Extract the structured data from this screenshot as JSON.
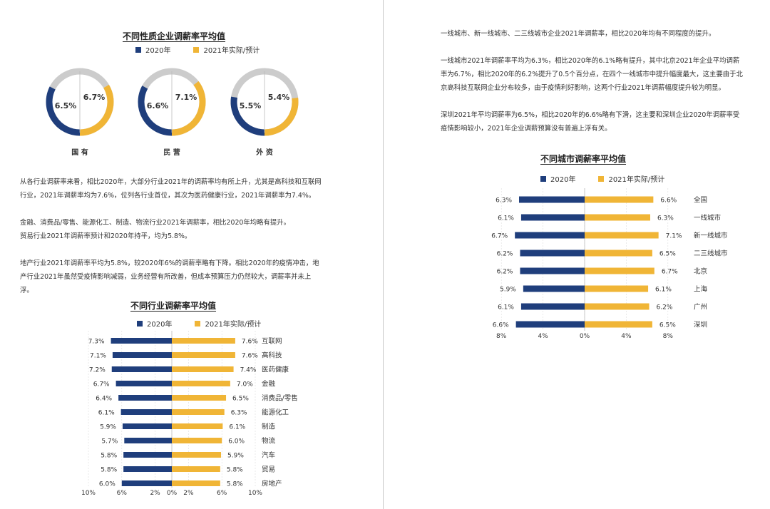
{
  "left_page": {
    "donut_chart": {
      "title": "不同性质企业调薪率平均值",
      "legend": [
        "2020年",
        "2021年实际/预计"
      ],
      "colors": {
        "y2020": "#1f3e7c",
        "y2021": "#f0b536",
        "rest": "#cccccc"
      }
    },
    "text_lines": [
      "从各行业调薪率来看，相比2020年，大部分行业2021年的调薪率均有所上升，尤其是高科技和互联网",
      "行业，2021年调薪率均为7.6%，位列各行业首位，其次为医药健康行业，2021年调薪率为7.4%。",
      "",
      "金融、消费品/零售、能源化工、制造、物流行业2021年调薪率，相比2020年均略有提升。",
      "贸易行业2021年调薪率预计和2020年持平，均为5.8%。",
      "",
      "地产行业2021年调薪率平均为5.8%，较2020年6%的调薪率略有下降。相比2020年的疫情冲击，地",
      "产行业2021年虽然受疫情影响减弱，业务经营有所改善，但成本预算压力仍然较大，调薪率并未上",
      "浮。"
    ],
    "industry_chart": {
      "title": "不同行业调薪率平均值",
      "legend": [
        "2020年",
        "2021年实际/预计"
      ]
    }
  },
  "right_page": {
    "text_lines": [
      "一线城市、新一线城市、二三线城市企业2021年调薪率，相比2020年均有不同程度的提升。",
      "",
      "一线城市2021年调薪率平均为6.3%，相比2020年的6.1%略有提升，其中北京2021年企业平均调薪",
      "率为6.7%，相比2020年的6.2%提升了0.5个百分点，在四个一线城市中提升幅度最大，这主要由于北",
      "京高科技互联网企业分布较多，由于疫情利好影响，这两个行业2021年调薪幅度提升较为明显。",
      "",
      "深圳2021年平均调薪率为6.5%，相比2020年的6.6%略有下滑，这主要和深圳企业2020年调薪率受",
      "疫情影响较小，2021年企业调薪预算没有普遍上浮有关。"
    ],
    "city_chart": {
      "title": "不同城市调薪率平均值",
      "legend": [
        "2020年",
        "2021年实际/预计"
      ]
    }
  },
  "chart_data": [
    {
      "type": "pie",
      "title": "不同性质企业调薪率平均值",
      "series_names": [
        "2020年",
        "2021年实际/预计"
      ],
      "groups": [
        {
          "label": "国 有",
          "v2020": "6.5%",
          "v2021": "6.7%"
        },
        {
          "label": "民 营",
          "v2020": "6.6%",
          "v2021": "7.1%"
        },
        {
          "label": "外 资",
          "v2020": "5.5%",
          "v2021": "5.4%"
        }
      ]
    },
    {
      "type": "bar",
      "title": "不同行业调薪率平均值",
      "categories": [
        "互联网",
        "高科技",
        "医药健康",
        "金融",
        "消费品/零售",
        "能源化工",
        "制造",
        "物流",
        "汽车",
        "贸易",
        "房地产"
      ],
      "series": [
        {
          "name": "2020年",
          "values": [
            7.3,
            7.1,
            7.2,
            6.7,
            6.4,
            6.1,
            5.9,
            5.7,
            5.8,
            5.8,
            6.0
          ]
        },
        {
          "name": "2021年实际/预计",
          "values": [
            7.6,
            7.6,
            7.4,
            7.0,
            6.5,
            6.3,
            6.1,
            6.0,
            5.9,
            5.8,
            5.8
          ]
        }
      ],
      "labels_2020": [
        "7.3%",
        "7.1%",
        "7.2%",
        "6.7%",
        "6.4%",
        "6.1%",
        "5.9%",
        "5.7%",
        "5.8%",
        "5.8%",
        "6.0%"
      ],
      "labels_2021": [
        "7.6%",
        "7.6%",
        "7.4%",
        "7.0%",
        "6.5%",
        "6.3%",
        "6.1%",
        "6.0%",
        "5.9%",
        "5.8%",
        "5.8%"
      ],
      "xlim": [
        -10,
        10
      ],
      "axis_ticks": [
        -10,
        -6,
        -2,
        0,
        2,
        6,
        10
      ],
      "axis_tick_labels": [
        "10%",
        "6%",
        "2%",
        "0%",
        "2%",
        "6%",
        "10%"
      ]
    },
    {
      "type": "bar",
      "title": "不同城市调薪率平均值",
      "categories": [
        "全国",
        "一线城市",
        "新一线城市",
        "二三线城市",
        "北京",
        "上海",
        "广州",
        "深圳"
      ],
      "series": [
        {
          "name": "2020年",
          "values": [
            6.3,
            6.1,
            6.7,
            6.2,
            6.2,
            5.9,
            6.1,
            6.6
          ]
        },
        {
          "name": "2021年实际/预计",
          "values": [
            6.6,
            6.3,
            7.1,
            6.5,
            6.7,
            6.1,
            6.2,
            6.5
          ]
        }
      ],
      "labels_2020": [
        "6.3%",
        "6.1%",
        "6.7%",
        "6.2%",
        "6.2%",
        "5.9%",
        "6.1%",
        "6.6%"
      ],
      "labels_2021": [
        "6.6%",
        "6.3%",
        "7.1%",
        "6.5%",
        "6.7%",
        "6.1%",
        "6.2%",
        "6.5%"
      ],
      "xlim": [
        -8,
        8
      ],
      "axis_ticks": [
        -8,
        -4,
        0,
        4,
        8
      ],
      "axis_tick_labels": [
        "8%",
        "4%",
        "0%",
        "4%",
        "8%"
      ]
    }
  ]
}
